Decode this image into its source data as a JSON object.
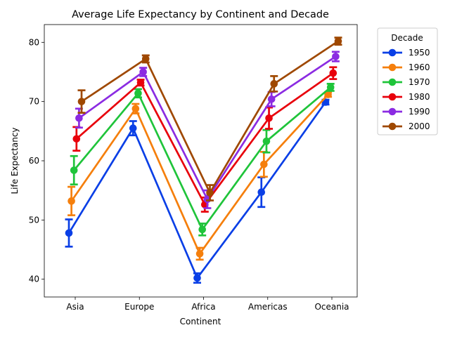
{
  "chart_data": {
    "type": "line",
    "title": "Average Life Expectancy by Continent and Decade",
    "xlabel": "Continent",
    "ylabel": "Life Expectancy",
    "categories": [
      "Asia",
      "Europe",
      "Africa",
      "Americas",
      "Oceania"
    ],
    "ylim": [
      37.0,
      83.0
    ],
    "yticks": [
      40,
      50,
      60,
      70,
      80
    ],
    "grid": false,
    "legend": {
      "title": "Decade",
      "placement": "outside-top-right"
    },
    "series": [
      {
        "name": "1950",
        "color": "#0a3fe6",
        "values": [
          47.8,
          65.5,
          40.2,
          54.7,
          69.9
        ],
        "err": [
          2.3,
          1.2,
          0.8,
          2.5,
          0.4
        ]
      },
      {
        "name": "1960",
        "color": "#f57f0c",
        "values": [
          53.2,
          68.8,
          44.3,
          59.4,
          71.2
        ],
        "err": [
          2.4,
          0.8,
          1.0,
          2.1,
          0.4
        ]
      },
      {
        "name": "1970",
        "color": "#1fc43a",
        "values": [
          58.4,
          71.4,
          48.4,
          63.3,
          72.4
        ],
        "err": [
          2.4,
          0.7,
          1.0,
          1.9,
          0.6
        ]
      },
      {
        "name": "1980",
        "color": "#e8000b",
        "values": [
          63.7,
          73.2,
          52.6,
          67.2,
          74.8
        ],
        "err": [
          2.0,
          0.5,
          1.2,
          1.8,
          1.0
        ]
      },
      {
        "name": "1990",
        "color": "#8b2be2",
        "values": [
          67.2,
          75.0,
          53.5,
          70.4,
          77.6
        ],
        "err": [
          1.6,
          0.7,
          1.5,
          1.2,
          0.8
        ]
      },
      {
        "name": "2000",
        "color": "#9f4800",
        "values": [
          70.0,
          77.2,
          54.6,
          73.0,
          80.2
        ],
        "err": [
          1.9,
          0.6,
          1.3,
          1.3,
          0.6
        ]
      }
    ]
  }
}
